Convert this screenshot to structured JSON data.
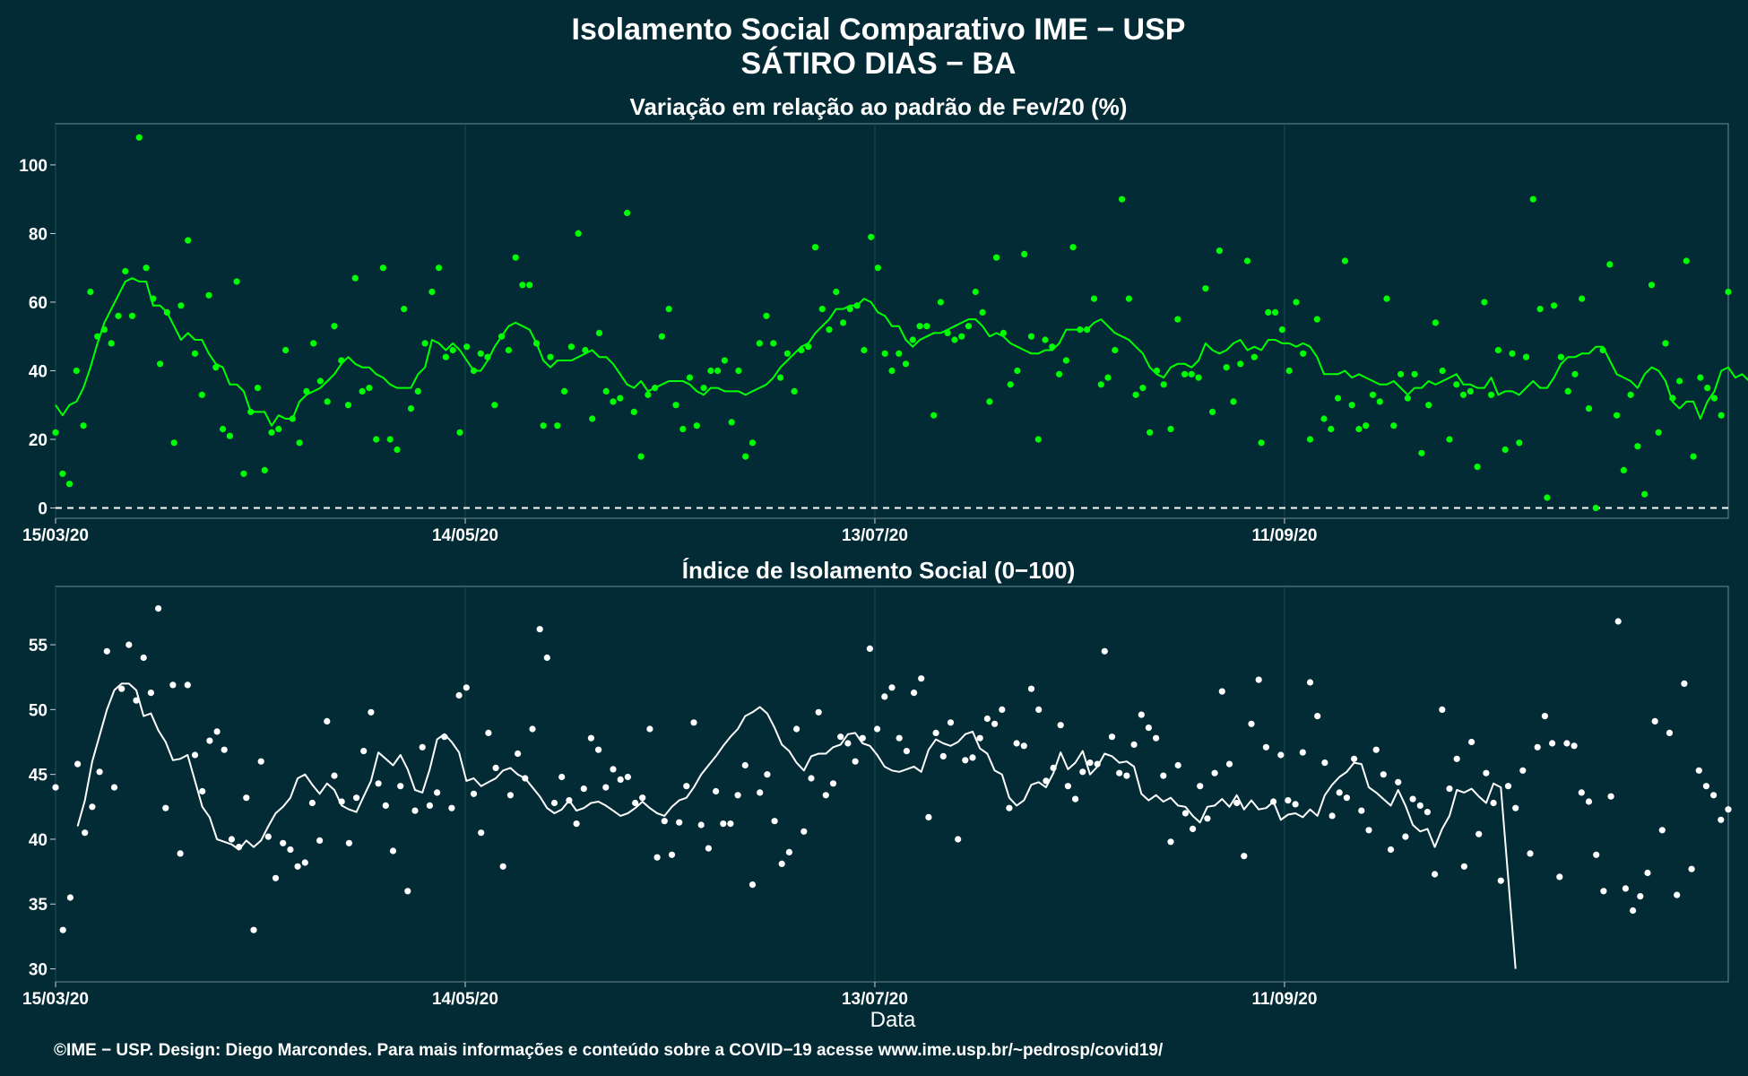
{
  "title_line1": "Isolamento Social Comparativo IME − USP",
  "title_line2": "SÁTIRO DIAS − BA",
  "caption": "©IME − USP. Design: Diego Marcondes. Para mais informações e conteúdo sobre a COVID−19 acesse www.ime.usp.br/~pedrosp/covid19/",
  "colors": {
    "background": "#022b36",
    "series_top": "#00ff00",
    "series_bottom": "#ffffff",
    "grid": "#1e4c52"
  },
  "chart_data": [
    {
      "type": "scatter",
      "title": "Variação em relação ao padrão de Fev/20 (%)",
      "xlabel": "",
      "ylabel": "",
      "x_tick_labels": [
        "15/03/20",
        "14/05/20",
        "13/07/20",
        "11/09/20"
      ],
      "x_ticks_day": [
        0,
        60,
        120,
        180
      ],
      "x_range_days": [
        0,
        245
      ],
      "ylim": [
        -3,
        112
      ],
      "y_ticks": [
        0,
        20,
        40,
        60,
        80,
        100
      ],
      "reference_line": 0,
      "grid": true,
      "point_values": [
        22,
        10,
        7,
        40,
        24,
        63,
        50,
        52,
        48,
        56,
        69,
        56,
        108,
        70,
        61,
        42,
        57,
        19,
        59,
        78,
        45,
        33,
        62,
        41,
        23,
        21,
        66,
        10,
        28,
        35,
        11,
        22,
        23,
        46,
        26,
        19,
        34,
        48,
        37,
        31,
        53,
        43,
        30,
        67,
        34,
        35,
        20,
        70,
        20,
        17,
        58,
        29,
        34,
        48,
        63,
        70,
        44,
        46,
        22,
        47,
        40,
        45,
        44,
        30,
        50,
        46,
        73,
        65,
        65,
        48,
        24,
        44,
        24,
        34,
        47,
        80,
        46,
        26,
        51,
        34,
        31,
        32,
        86,
        28,
        15,
        33,
        35,
        50,
        58,
        30,
        23,
        38,
        24,
        35,
        40,
        40,
        43,
        25,
        40,
        15,
        19,
        48,
        56,
        48,
        38,
        45,
        34,
        46,
        47,
        76,
        58,
        52,
        63,
        54,
        58,
        59,
        46,
        79,
        70,
        45,
        40,
        45,
        42,
        49,
        53,
        53,
        27,
        60,
        51,
        49,
        50,
        53,
        63,
        57,
        31,
        73,
        51,
        36,
        40,
        74,
        50,
        20,
        49,
        47,
        39,
        43,
        76,
        52,
        52,
        61,
        36,
        38,
        46,
        90,
        61,
        33,
        35,
        22,
        40,
        36,
        23,
        55,
        39,
        39,
        38,
        64,
        28,
        75,
        41,
        31,
        42,
        72,
        44,
        19,
        57,
        57,
        52,
        40,
        60,
        45,
        20,
        55,
        26,
        23,
        32,
        72,
        30,
        23,
        24,
        33,
        31,
        61,
        24,
        39,
        32,
        39,
        16,
        30,
        54,
        40,
        20,
        36,
        33,
        34,
        12,
        60,
        33,
        46,
        17,
        45,
        19,
        44,
        90,
        58,
        3,
        59,
        44,
        34,
        39,
        61,
        29,
        0,
        46,
        71,
        27,
        11,
        33,
        18,
        4,
        65,
        22,
        48,
        32,
        37,
        72,
        15,
        38,
        35,
        32,
        27,
        63
      ],
      "smooth_values": [
        30,
        27,
        30,
        31,
        35,
        41,
        48,
        54,
        58,
        62,
        66,
        67,
        66,
        66,
        59,
        59,
        57,
        53,
        49,
        51,
        49,
        49,
        45,
        42,
        41,
        36,
        36,
        34,
        28,
        28,
        28,
        24,
        27,
        26,
        26,
        31,
        33,
        34,
        35,
        37,
        39,
        42,
        44,
        42,
        41,
        41,
        39,
        38,
        36,
        35,
        35,
        35,
        39,
        41,
        49,
        48,
        46,
        48,
        46,
        43,
        40,
        40,
        43,
        47,
        50,
        53,
        54,
        53,
        52,
        48,
        43,
        41,
        43,
        43,
        43,
        44,
        45,
        46,
        44,
        44,
        42,
        39,
        36,
        35,
        37,
        34,
        35,
        36,
        37,
        37,
        37,
        36,
        34,
        33,
        35,
        35,
        34,
        34,
        34,
        33,
        34,
        35,
        36,
        38,
        41,
        43,
        45,
        47,
        48,
        51,
        53,
        55,
        58,
        58,
        59,
        59,
        61,
        60,
        57,
        56,
        53,
        53,
        49,
        47,
        49,
        50,
        51,
        51,
        52,
        53,
        54,
        55,
        55,
        53,
        50,
        51,
        50,
        48,
        47,
        46,
        45,
        45,
        46,
        46,
        48,
        52,
        52,
        52,
        52,
        54,
        55,
        53,
        51,
        50,
        49,
        47,
        45,
        41,
        39,
        38,
        41,
        42,
        42,
        41,
        43,
        48,
        46,
        45,
        46,
        48,
        49,
        46,
        47,
        46,
        49,
        49,
        48,
        48,
        47,
        48,
        47,
        44,
        39,
        39,
        39,
        40,
        38,
        39,
        38,
        37,
        36,
        36,
        37,
        35,
        33,
        35,
        35,
        37,
        36,
        37,
        38,
        39,
        36,
        36,
        35,
        35,
        38,
        33,
        34,
        34,
        33,
        35,
        37,
        35,
        35,
        38,
        42,
        44,
        44,
        45,
        45,
        47,
        47,
        43,
        39,
        38,
        37,
        35,
        39,
        41,
        40,
        37,
        31,
        29,
        31,
        31,
        26,
        31,
        34,
        40,
        41,
        38,
        39,
        37,
        38,
        40
      ]
    },
    {
      "type": "scatter",
      "title": "Índice de Isolamento Social (0−100)",
      "xlabel": "Data",
      "ylabel": "",
      "x_tick_labels": [
        "15/03/20",
        "14/05/20",
        "13/07/20",
        "11/09/20"
      ],
      "x_ticks_day": [
        0,
        60,
        120,
        180
      ],
      "x_range_days": [
        0,
        245
      ],
      "ylim": [
        29,
        59.5
      ],
      "y_ticks": [
        30,
        35,
        40,
        45,
        50,
        55
      ],
      "grid": true,
      "point_values": [
        44,
        33,
        35.5,
        45.8,
        40.5,
        42.5,
        45.2,
        54.5,
        44,
        51.6,
        55,
        50.7,
        54,
        51.3,
        57.8,
        42.4,
        51.9,
        38.9,
        51.9,
        46.5,
        43.7,
        47.6,
        48.3,
        46.9,
        40,
        39.4,
        43.2,
        33,
        46,
        40.2,
        37,
        39.7,
        39.2,
        37.9,
        38.2,
        42.8,
        39.9,
        49.1,
        44.9,
        42.9,
        39.7,
        43.2,
        46.8,
        49.8,
        44.3,
        42.6,
        39.1,
        44.1,
        36,
        42.2,
        47.1,
        42.6,
        43.6,
        47.9,
        42.4,
        51.1,
        51.7,
        43.5,
        40.5,
        48.2,
        45.5,
        37.9,
        43.4,
        46.6,
        44.7,
        48.5,
        56.2,
        54,
        42.8,
        44.8,
        43,
        41.2,
        43.9,
        47.8,
        46.9,
        44,
        45.4,
        44.6,
        44.8,
        42.8,
        43.2,
        48.5,
        38.6,
        41.4,
        38.8,
        41.3,
        44.1,
        49,
        41.1,
        39.3,
        43.7,
        41.2,
        41.2,
        43.4,
        45.7,
        36.5,
        43.6,
        45,
        41.4,
        38.1,
        39,
        48.5,
        40.6,
        44.7,
        49.8,
        43.4,
        44.3,
        47.9,
        47.4,
        46,
        47.8,
        54.7,
        48.5,
        51,
        51.7,
        47.8,
        46.8,
        51.3,
        52.4,
        41.7,
        48.2,
        46.4,
        49,
        40,
        46.1,
        46.3,
        47.8,
        49.3,
        48.9,
        50,
        42.4,
        47.4,
        47.2,
        51.6,
        50,
        44.5,
        45.5,
        48.8,
        44.1,
        43.1,
        45.2,
        45.9,
        45.8,
        54.5,
        47.9,
        45.1,
        44.9,
        47.3,
        49.6,
        48.6,
        47.8,
        44.9,
        39.8,
        45.7,
        42,
        40.8,
        44.1,
        41.6,
        45.1,
        51.4,
        45.8,
        42.8,
        38.7,
        48.9,
        52.3,
        47.1,
        42.9,
        46.5,
        43,
        42.7,
        46.7,
        52.1,
        49.5,
        45.9,
        41.8,
        43.6,
        43.2,
        46.2,
        42.2,
        40.7,
        46.9,
        45,
        39.2,
        44.4,
        40.2,
        43.1,
        42.6,
        42.1,
        37.3,
        50,
        43.9,
        46.2,
        37.9,
        47.5,
        40.4,
        45.1,
        42.8,
        36.8,
        44.1,
        42.4,
        45.3,
        38.9,
        47.1,
        49.5,
        47.4,
        37.1,
        47.4,
        47.2,
        43.6,
        42.9,
        38.8,
        36,
        43.3,
        56.8,
        36.2,
        34.5,
        35.6,
        37.4,
        49.1,
        40.7,
        48.2,
        35.7,
        52,
        37.7,
        45.3,
        44.1,
        43.4,
        41.5,
        42.3
      ],
      "smooth_values": [
        null,
        null,
        null,
        41,
        43,
        46,
        48,
        50,
        51.5,
        52,
        52,
        51.5,
        49.5,
        49.7,
        48.4,
        47.5,
        46.1,
        46.2,
        46.5,
        44.5,
        42.5,
        41.7,
        40,
        39.8,
        39.6,
        39.2,
        39.9,
        39.4,
        39.9,
        41,
        42,
        42.5,
        43.2,
        44.7,
        45,
        44.2,
        43.5,
        44.3,
        43.8,
        42.6,
        42.3,
        42.1,
        43.3,
        44.5,
        46.7,
        46.2,
        45.7,
        46.5,
        45.4,
        43.8,
        43.6,
        45.4,
        47.7,
        48.1,
        47.5,
        46.7,
        44.5,
        44.7,
        44.1,
        44.4,
        44.7,
        45.3,
        45.5,
        45,
        44.7,
        44,
        43.3,
        42.4,
        42,
        42.3,
        43,
        42.2,
        42.4,
        42.8,
        42.9,
        42.6,
        42.2,
        41.8,
        42,
        42.4,
        42.9,
        42.4,
        42,
        41.8,
        42.5,
        43,
        43.2,
        44,
        45,
        45.7,
        46.4,
        47.2,
        47.9,
        48.5,
        49.5,
        49.8,
        50.2,
        49.7,
        48.6,
        47.3,
        46.8,
        45.9,
        45.3,
        46.4,
        46.6,
        46.6,
        47.1,
        47.3,
        48.1,
        48.2,
        47.4,
        47.2,
        46.5,
        45.6,
        45.3,
        45.2,
        45.4,
        45.6,
        45.2,
        46.9,
        47.7,
        47.4,
        47.2,
        47.5,
        48.1,
        48.3,
        47,
        46.6,
        45.3,
        45,
        43.2,
        42.6,
        43,
        44.2,
        44.4,
        44,
        45.1,
        46.7,
        45.4,
        45.9,
        46.8,
        45,
        45.6,
        46.6,
        46.4,
        45.9,
        46,
        45.6,
        43.5,
        43,
        43.4,
        42.9,
        43.2,
        42.6,
        42.5,
        41.8,
        41.3,
        42.5,
        42.6,
        43.1,
        42.5,
        43.4,
        42.3,
        43,
        42.3,
        42.4,
        42.9,
        41.5,
        41.9,
        42,
        41.7,
        42.3,
        41.8,
        43.4,
        44.2,
        44.8,
        45.2,
        45.9,
        45.8,
        44,
        43.6,
        43.1,
        42.6,
        43.8,
        42.6,
        41.1,
        40.6,
        40.8,
        39.4,
        40.8,
        41.8,
        43.8,
        43.6,
        43.9,
        43.3,
        42.8,
        44.3,
        44,
        37,
        30
      ]
    }
  ]
}
